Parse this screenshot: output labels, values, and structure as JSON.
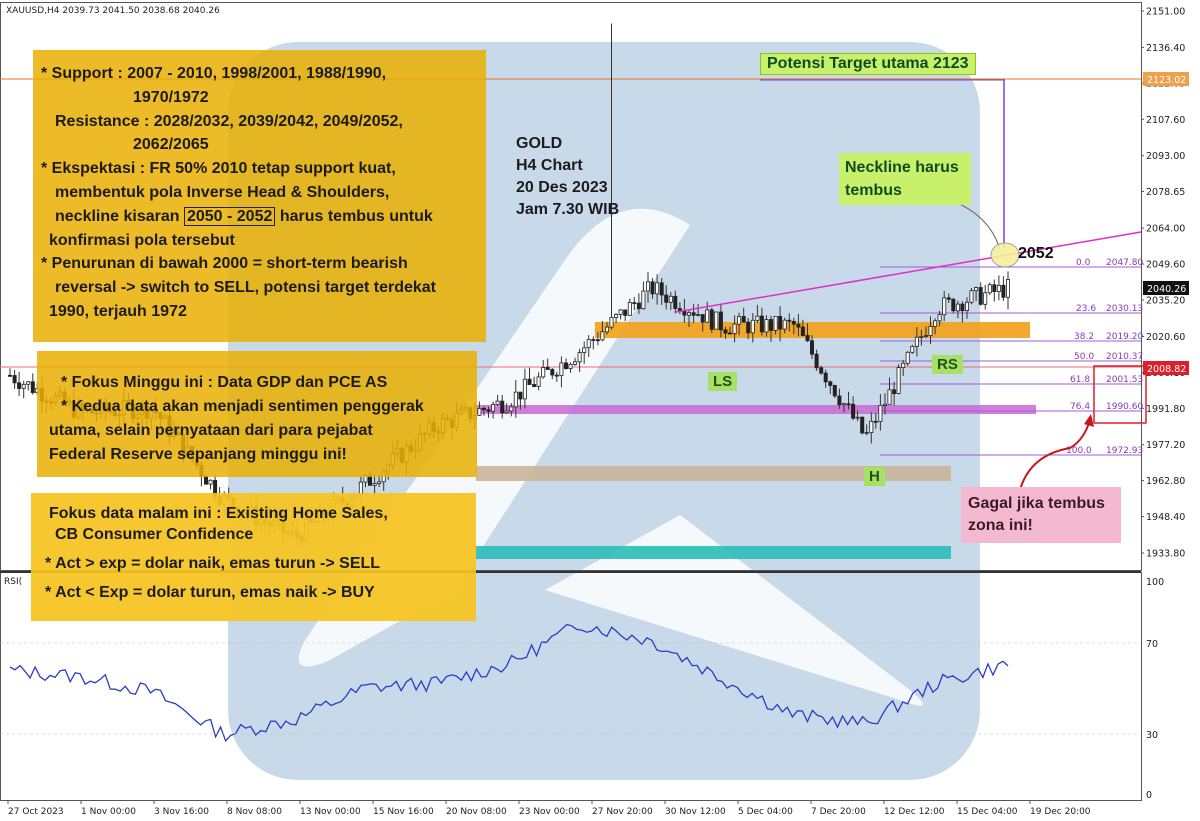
{
  "chart_header": "XAUUSD,H4  2039.73 2041.50 2038.68 2040.26",
  "rsi_label": "RSI(",
  "price_axis": {
    "labels": [
      "2151.00",
      "2136.40",
      "2122.05",
      "2107.60",
      "2093.00",
      "2078.65",
      "2064.00",
      "2049.60",
      "2035.20",
      "2020.60",
      "2006.10",
      "1991.80",
      "1977.20",
      "1962.80",
      "1948.40",
      "1933.80"
    ],
    "current_price": "2040.26",
    "target_price_tag": "2123.02",
    "red_level_tag": "2008.82"
  },
  "rsi_axis": {
    "labels": [
      "100",
      "70",
      "30",
      "0"
    ]
  },
  "time_axis": {
    "labels": [
      "27 Oct 2023",
      "1 Nov 00:00",
      "3 Nov 16:00",
      "8 Nov 08:00",
      "13 Nov 00:00",
      "15 Nov 16:00",
      "20 Nov 08:00",
      "23 Nov 00:00",
      "27 Nov 20:00",
      "30 Nov 12:00",
      "5 Dec 04:00",
      "7 Dec 20:00",
      "12 Dec 12:00",
      "15 Dec 04:00",
      "19 Dec 20:00"
    ]
  },
  "fibonacci": [
    {
      "ratio": "0.0",
      "price": "2047.80"
    },
    {
      "ratio": "23.6",
      "price": "2030.13"
    },
    {
      "ratio": "38.2",
      "price": "2019.20"
    },
    {
      "ratio": "50.0",
      "price": "2010.37"
    },
    {
      "ratio": "61.8",
      "price": "2001.53"
    },
    {
      "ratio": "76.4",
      "price": "1990.60"
    },
    {
      "ratio": "100.0",
      "price": "1972.93"
    }
  ],
  "notes": {
    "levels": {
      "line1": "* Support : 2007 - 2010, 1998/2001, 1988/1990,",
      "line2": "1970/1972",
      "line3": "Resistance : 2028/2032, 2039/2042, 2049/2052,",
      "line4": "2062/2065",
      "line5": "* Ekspektasi : FR 50% 2010 tetap support kuat,",
      "line6": "membentuk pola Inverse Head & Shoulders,",
      "line7a": "neckline kisaran",
      "line7b": "2050 - 2052",
      "line7c": "harus tembus untuk",
      "line8": "konfirmasi pola tersebut",
      "line9": "* Penurunan di bawah 2000 = short-term bearish",
      "line10": "reversal -> switch to SELL, potensi target terdekat",
      "line11": "1990, terjauh 1972"
    },
    "focus_week": {
      "line1": "* Fokus Minggu ini : Data GDP dan PCE AS",
      "line2": "* Kedua data akan menjadi sentimen penggerak",
      "line3": "utama, selain pernyataan dari para pejabat",
      "line4": "Federal Reserve sepanjang minggu ini!"
    },
    "focus_tonight": {
      "line1": "Fokus data malam ini : Existing Home Sales,",
      "line2": "CB Consumer Confidence",
      "line3": "* Act > exp = dolar naik, emas turun -> SELL",
      "line4": "* Act < Exp = dolar turun, emas naik -> BUY"
    }
  },
  "gold_title": {
    "line1": "GOLD",
    "line2": "H4 Chart",
    "line3": "20 Des 2023",
    "line4": "Jam 7.30 WIB"
  },
  "target_label": "Potensi Target utama 2123",
  "neckline_label": {
    "line1": "Neckline harus",
    "line2": "tembus"
  },
  "label_2052": "2052",
  "pattern_labels": {
    "ls": "LS",
    "head": "H",
    "rs": "RS"
  },
  "fail_label": {
    "line1": "Gagal jika tembus",
    "line2": "zona ini!"
  },
  "colors": {
    "candle": "#333333",
    "rsi_line": "#2b3cc4",
    "neckline": "#e030c8",
    "target_line": "#e8741a",
    "fib": "#a25cd6",
    "support_zone": "#f2a21b",
    "purple_zone": "#c868d4",
    "tan_zone": "#c9b49a",
    "teal_zone": "#2bbcb8",
    "watermark": "#9ab6d4",
    "red_tag": "#e01e2b"
  },
  "chart_data": {
    "type": "candlestick",
    "symbol": "XAUUSD",
    "timeframe": "H4",
    "ohlc_last": {
      "open": 2039.73,
      "high": 2041.5,
      "low": 2038.68,
      "close": 2040.26
    },
    "close_path": [
      [
        "27 Oct 2023",
        2005
      ],
      [
        "1 Nov 00:00",
        1990
      ],
      [
        "3 Nov 16:00",
        1992
      ],
      [
        "8 Nov 08:00",
        1955
      ],
      [
        "13 Nov 00:00",
        1940
      ],
      [
        "15 Nov 16:00",
        1962
      ],
      [
        "20 Nov 08:00",
        1985
      ],
      [
        "23 Nov 00:00",
        1995
      ],
      [
        "27 Nov 20:00",
        2015
      ],
      [
        "30 Nov 12:00",
        2040
      ],
      [
        "5 Dec 04:00",
        2025
      ],
      [
        "7 Dec 20:00",
        2025
      ],
      [
        "12 Dec 12:00",
        1980
      ],
      [
        "15 Dec 04:00",
        2032
      ],
      [
        "19 Dec 20:00",
        2040
      ]
    ],
    "peak_high": 2146,
    "rsi_path": [
      [
        "27 Oct 2023",
        58
      ],
      [
        "1 Nov 00:00",
        55
      ],
      [
        "3 Nov 16:00",
        48
      ],
      [
        "8 Nov 08:00",
        28
      ],
      [
        "13 Nov 00:00",
        35
      ],
      [
        "15 Nov 16:00",
        50
      ],
      [
        "20 Nov 08:00",
        52
      ],
      [
        "23 Nov 00:00",
        61
      ],
      [
        "27 Nov 20:00",
        80
      ],
      [
        "30 Nov 12:00",
        72
      ],
      [
        "5 Dec 04:00",
        54
      ],
      [
        "7 Dec 20:00",
        37
      ],
      [
        "12 Dec 12:00",
        33
      ],
      [
        "15 Dec 04:00",
        52
      ],
      [
        "19 Dec 20:00",
        61
      ]
    ],
    "y_range": [
      1925,
      2155
    ],
    "rsi_range": [
      0,
      100
    ]
  }
}
